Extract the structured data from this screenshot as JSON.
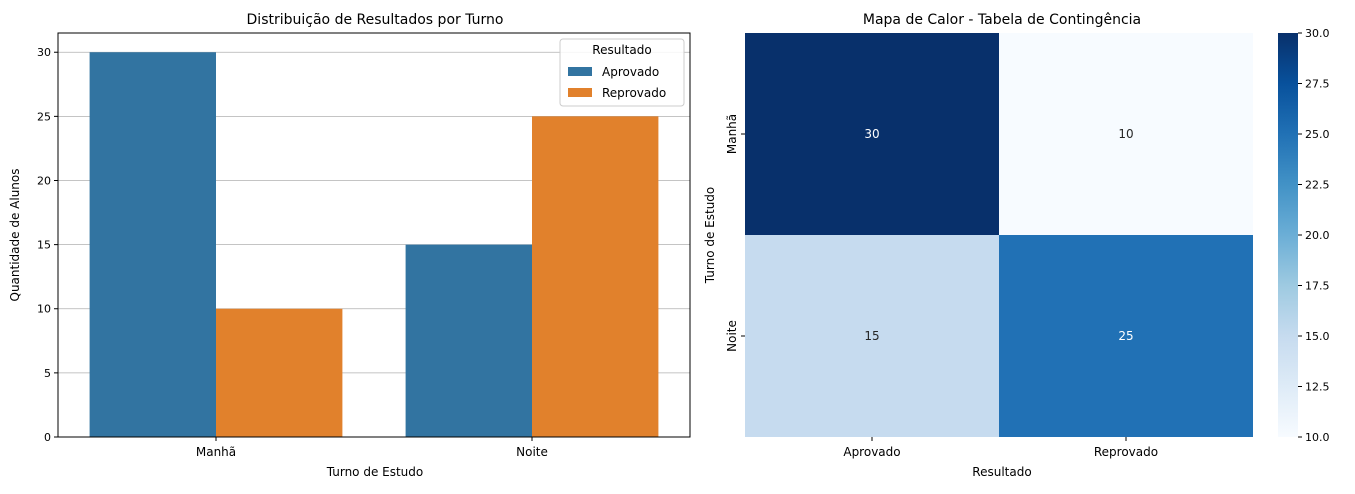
{
  "chart_data": [
    {
      "type": "bar",
      "title": "Distribuição de Resultados por Turno",
      "xlabel": "Turno de Estudo",
      "ylabel": "Quantidade de Alunos",
      "categories": [
        "Manhã",
        "Noite"
      ],
      "series": [
        {
          "name": "Aprovado",
          "values": [
            30,
            15
          ],
          "color": "#3274a1"
        },
        {
          "name": "Reprovado",
          "values": [
            10,
            25
          ],
          "color": "#e1812c"
        }
      ],
      "ylim": [
        0,
        31.5
      ],
      "yticks": [
        0,
        5,
        10,
        15,
        20,
        25,
        30
      ],
      "grid": "y",
      "legend": {
        "title": "Resultado",
        "placement": "top-right"
      }
    },
    {
      "type": "heatmap",
      "title": "Mapa de Calor - Tabela de Contingência",
      "xlabel": "Resultado",
      "ylabel": "Turno de Estudo",
      "x_categories": [
        "Aprovado",
        "Reprovado"
      ],
      "y_categories": [
        "Manhã",
        "Noite"
      ],
      "values": [
        [
          30,
          10
        ],
        [
          15,
          25
        ]
      ],
      "colormap": "Blues",
      "colorbar": {
        "range": [
          10,
          30
        ],
        "ticks": [
          "10.0",
          "12.5",
          "15.0",
          "17.5",
          "20.0",
          "22.5",
          "25.0",
          "27.5",
          "30.0"
        ]
      }
    }
  ]
}
